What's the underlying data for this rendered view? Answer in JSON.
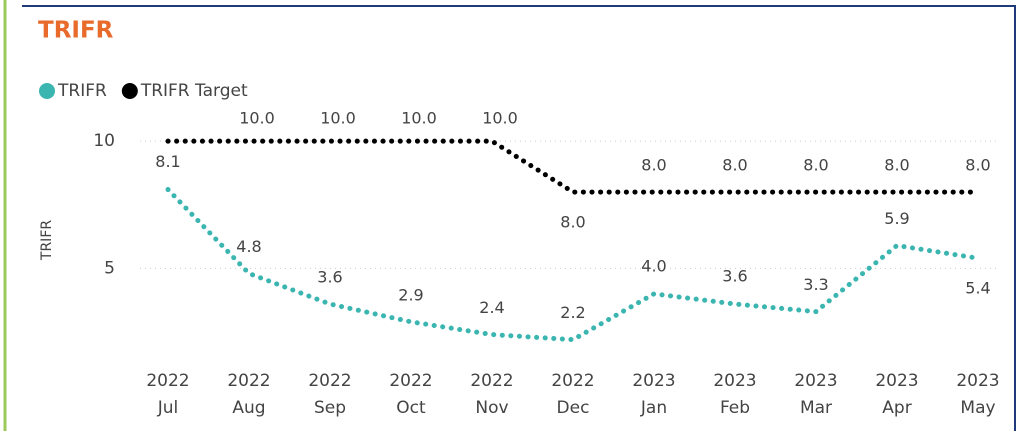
{
  "chart_data": {
    "type": "line",
    "title": "TRIFR",
    "y_label": "TRIFR",
    "categories": [
      [
        "2022",
        "Jul"
      ],
      [
        "2022",
        "Aug"
      ],
      [
        "2022",
        "Sep"
      ],
      [
        "2022",
        "Oct"
      ],
      [
        "2022",
        "Nov"
      ],
      [
        "2022",
        "Dec"
      ],
      [
        "2023",
        "Jan"
      ],
      [
        "2023",
        "Feb"
      ],
      [
        "2023",
        "Mar"
      ],
      [
        "2023",
        "Apr"
      ],
      [
        "2023",
        "May"
      ]
    ],
    "series": [
      {
        "name": "TRIFR",
        "color": "#3bb5b0",
        "values": [
          8.1,
          4.8,
          3.6,
          2.9,
          2.4,
          2.2,
          4.0,
          3.6,
          3.3,
          5.9,
          5.4
        ],
        "value_labels": [
          "8.1",
          "4.8",
          "3.6",
          "2.9",
          "2.4",
          "2.2",
          "4.0",
          "3.6",
          "3.3",
          "5.9",
          "5.4"
        ]
      },
      {
        "name": "TRIFR Target",
        "color": "#000000",
        "values": [
          10,
          10,
          10,
          10,
          10,
          8,
          8,
          8,
          8,
          8,
          8
        ],
        "value_labels": [
          null,
          "10.0",
          "10.0",
          "10.0",
          "10.0",
          "8.0",
          "8.0",
          "8.0",
          "8.0",
          "8.0",
          "8.0"
        ]
      }
    ],
    "ylim": [
      1.4,
      10.4
    ],
    "yticks": [
      5,
      10
    ],
    "grid": true,
    "legend": "top-left"
  }
}
